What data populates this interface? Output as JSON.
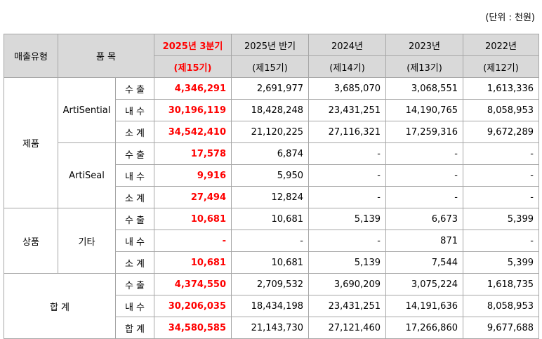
{
  "unit_note": "(단위 : 천원)",
  "header": {
    "col_type": "매출유형",
    "col_item": "품 목",
    "periods": [
      {
        "year": "2025년 3분기",
        "term": "(제15기)"
      },
      {
        "year": "2025년 반기",
        "term": "(제15기)"
      },
      {
        "year": "2024년",
        "term": "(제14기)"
      },
      {
        "year": "2023년",
        "term": "(제13기)"
      },
      {
        "year": "2022년",
        "term": "(제12기)"
      }
    ]
  },
  "groups": {
    "product": "제품",
    "goods": "상품",
    "total": "합 계"
  },
  "items": {
    "artisential": "ArtiSential",
    "artiseal": "ArtiSeal",
    "etc": "기타"
  },
  "rows": [
    {
      "label": "수 출",
      "values": [
        "4,346,291",
        "2,691,977",
        "3,685,070",
        "3,068,551",
        "1,613,336"
      ]
    },
    {
      "label": "내 수",
      "values": [
        "30,196,119",
        "18,428,248",
        "23,431,251",
        "14,190,765",
        "8,058,953"
      ]
    },
    {
      "label": "소 계",
      "values": [
        "34,542,410",
        "21,120,225",
        "27,116,321",
        "17,259,316",
        "9,672,289"
      ]
    },
    {
      "label": "수 출",
      "values": [
        "17,578",
        "6,874",
        "-",
        "-",
        "-"
      ]
    },
    {
      "label": "내 수",
      "values": [
        "9,916",
        "5,950",
        "-",
        "-",
        "-"
      ]
    },
    {
      "label": "소 계",
      "values": [
        "27,494",
        "12,824",
        "-",
        "-",
        "-"
      ]
    },
    {
      "label": "수 출",
      "values": [
        "10,681",
        "10,681",
        "5,139",
        "6,673",
        "5,399"
      ]
    },
    {
      "label": "내 수",
      "values": [
        "-",
        "-",
        "-",
        "871",
        "-"
      ]
    },
    {
      "label": "소 계",
      "values": [
        "10,681",
        "10,681",
        "5,139",
        "7,544",
        "5,399"
      ]
    },
    {
      "label": "수 출",
      "values": [
        "4,374,550",
        "2,709,532",
        "3,690,209",
        "3,075,224",
        "1,618,735"
      ]
    },
    {
      "label": "내 수",
      "values": [
        "30,206,035",
        "18,434,198",
        "23,431,251",
        "14,191,636",
        "8,058,953"
      ]
    },
    {
      "label": "합 계",
      "values": [
        "34,580,585",
        "21,143,730",
        "27,121,460",
        "17,266,860",
        "9,677,688"
      ]
    }
  ]
}
